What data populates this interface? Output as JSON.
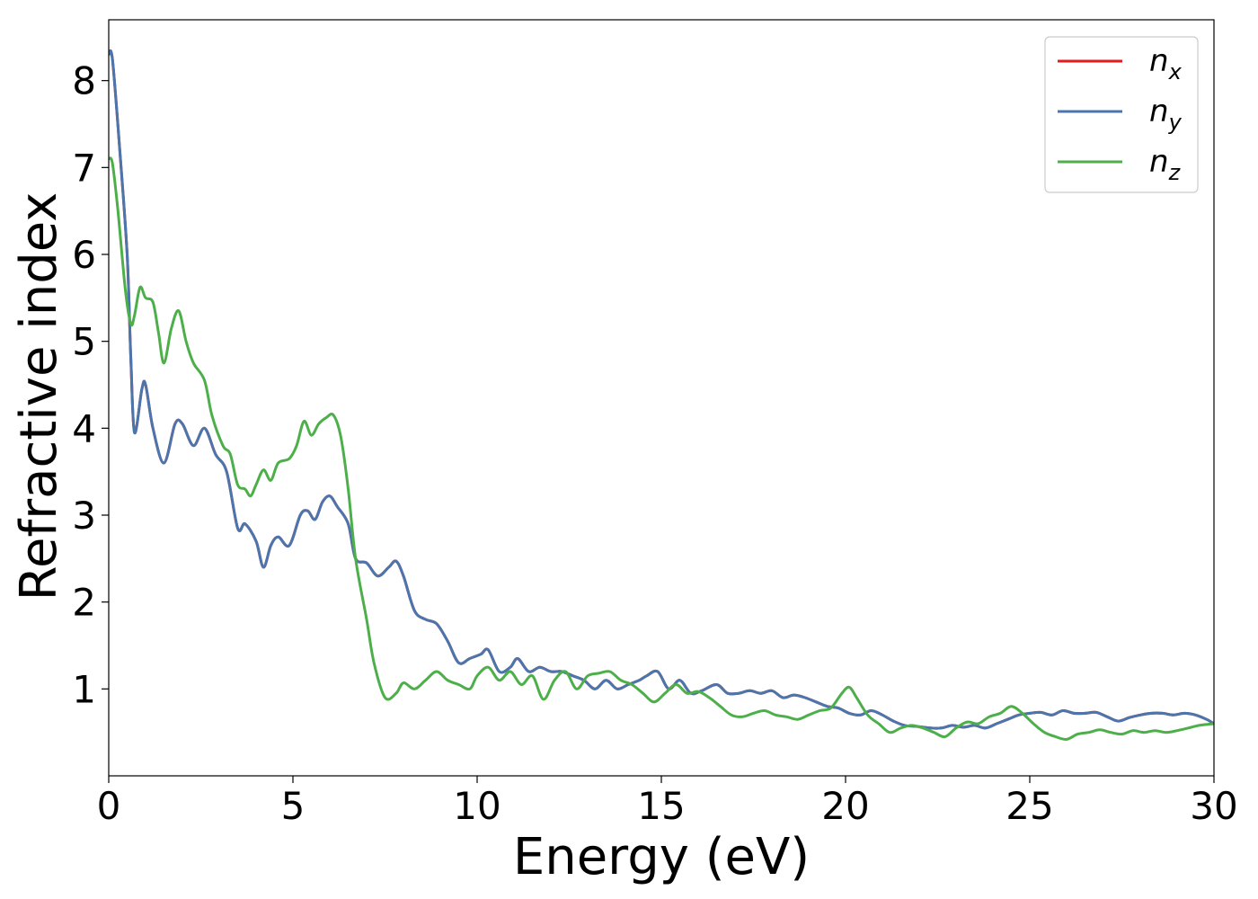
{
  "chart_data": {
    "type": "line",
    "title": "",
    "xlabel": "Energy (eV)",
    "ylabel": "Refractive index",
    "xlim": [
      0,
      30
    ],
    "ylim": [
      0,
      8.7
    ],
    "xticks": [
      0,
      5,
      10,
      15,
      20,
      25,
      30
    ],
    "yticks": [
      1,
      2,
      3,
      4,
      5,
      6,
      7,
      8
    ],
    "grid": false,
    "legend_position": "top-right",
    "series": [
      {
        "name": "n_x",
        "label_base": "n",
        "label_sub": "x",
        "color": "#e41a1c",
        "x": [
          0,
          0.1,
          0.3,
          0.5,
          0.6,
          0.7,
          0.9,
          1.0,
          1.2,
          1.5,
          1.8,
          2.0,
          2.3,
          2.6,
          2.9,
          3.2,
          3.5,
          3.7,
          4.0,
          4.2,
          4.4,
          4.6,
          4.9,
          5.2,
          5.4,
          5.6,
          5.8,
          6.0,
          6.2,
          6.5,
          6.7,
          7.0,
          7.3,
          7.6,
          7.8,
          8.0,
          8.3,
          8.6,
          8.9,
          9.2,
          9.5,
          9.8,
          10.1,
          10.3,
          10.6,
          10.9,
          11.1,
          11.4,
          11.7,
          12.0,
          12.3,
          12.6,
          12.9,
          13.2,
          13.5,
          13.8,
          14.1,
          14.4,
          14.6,
          14.9,
          15.2,
          15.5,
          15.8,
          16.1,
          16.5,
          16.8,
          17.1,
          17.4,
          17.7,
          18.0,
          18.3,
          18.6,
          18.9,
          19.2,
          19.5,
          19.8,
          20.1,
          20.4,
          20.7,
          21.0,
          21.3,
          21.6,
          21.9,
          22.3,
          22.6,
          22.9,
          23.2,
          23.5,
          23.8,
          24.1,
          24.4,
          24.7,
          25.0,
          25.3,
          25.6,
          25.9,
          26.2,
          26.5,
          26.8,
          27.1,
          27.4,
          27.7,
          28.0,
          28.3,
          28.6,
          28.9,
          29.2,
          29.5,
          29.8,
          30.0
        ],
        "values": [
          8.3,
          8.25,
          7.2,
          6.0,
          4.8,
          3.95,
          4.45,
          4.5,
          4.0,
          3.6,
          4.05,
          4.05,
          3.8,
          4.0,
          3.7,
          3.5,
          2.85,
          2.9,
          2.7,
          2.4,
          2.65,
          2.75,
          2.65,
          3.0,
          3.05,
          2.95,
          3.15,
          3.22,
          3.1,
          2.9,
          2.5,
          2.45,
          2.3,
          2.4,
          2.47,
          2.3,
          1.9,
          1.8,
          1.75,
          1.55,
          1.3,
          1.35,
          1.4,
          1.45,
          1.2,
          1.25,
          1.35,
          1.2,
          1.25,
          1.2,
          1.2,
          1.15,
          1.1,
          1.0,
          1.1,
          1.0,
          1.05,
          1.1,
          1.15,
          1.2,
          1.0,
          1.1,
          0.95,
          0.98,
          1.05,
          0.95,
          0.95,
          0.98,
          0.95,
          0.98,
          0.9,
          0.93,
          0.9,
          0.85,
          0.8,
          0.78,
          0.72,
          0.7,
          0.75,
          0.7,
          0.63,
          0.58,
          0.57,
          0.55,
          0.55,
          0.58,
          0.56,
          0.58,
          0.55,
          0.6,
          0.65,
          0.7,
          0.72,
          0.73,
          0.7,
          0.75,
          0.72,
          0.72,
          0.73,
          0.68,
          0.63,
          0.67,
          0.7,
          0.72,
          0.72,
          0.7,
          0.72,
          0.7,
          0.65,
          0.6
        ]
      },
      {
        "name": "n_y",
        "label_base": "n",
        "label_sub": "y",
        "color": "#4a76ad",
        "x": [
          0,
          0.1,
          0.3,
          0.5,
          0.6,
          0.7,
          0.9,
          1.0,
          1.2,
          1.5,
          1.8,
          2.0,
          2.3,
          2.6,
          2.9,
          3.2,
          3.5,
          3.7,
          4.0,
          4.2,
          4.4,
          4.6,
          4.9,
          5.2,
          5.4,
          5.6,
          5.8,
          6.0,
          6.2,
          6.5,
          6.7,
          7.0,
          7.3,
          7.6,
          7.8,
          8.0,
          8.3,
          8.6,
          8.9,
          9.2,
          9.5,
          9.8,
          10.1,
          10.3,
          10.6,
          10.9,
          11.1,
          11.4,
          11.7,
          12.0,
          12.3,
          12.6,
          12.9,
          13.2,
          13.5,
          13.8,
          14.1,
          14.4,
          14.6,
          14.9,
          15.2,
          15.5,
          15.8,
          16.1,
          16.5,
          16.8,
          17.1,
          17.4,
          17.7,
          18.0,
          18.3,
          18.6,
          18.9,
          19.2,
          19.5,
          19.8,
          20.1,
          20.4,
          20.7,
          21.0,
          21.3,
          21.6,
          21.9,
          22.3,
          22.6,
          22.9,
          23.2,
          23.5,
          23.8,
          24.1,
          24.4,
          24.7,
          25.0,
          25.3,
          25.6,
          25.9,
          26.2,
          26.5,
          26.8,
          27.1,
          27.4,
          27.7,
          28.0,
          28.3,
          28.6,
          28.9,
          29.2,
          29.5,
          29.8,
          30.0
        ],
        "values": [
          8.3,
          8.25,
          7.2,
          6.0,
          4.8,
          3.95,
          4.45,
          4.5,
          4.0,
          3.6,
          4.05,
          4.05,
          3.8,
          4.0,
          3.7,
          3.5,
          2.85,
          2.9,
          2.7,
          2.4,
          2.65,
          2.75,
          2.65,
          3.0,
          3.05,
          2.95,
          3.15,
          3.22,
          3.1,
          2.9,
          2.5,
          2.45,
          2.3,
          2.4,
          2.47,
          2.3,
          1.9,
          1.8,
          1.75,
          1.55,
          1.3,
          1.35,
          1.4,
          1.45,
          1.2,
          1.25,
          1.35,
          1.2,
          1.25,
          1.2,
          1.2,
          1.15,
          1.1,
          1.0,
          1.1,
          1.0,
          1.05,
          1.1,
          1.15,
          1.2,
          1.0,
          1.1,
          0.95,
          0.98,
          1.05,
          0.95,
          0.95,
          0.98,
          0.95,
          0.98,
          0.9,
          0.93,
          0.9,
          0.85,
          0.8,
          0.78,
          0.72,
          0.7,
          0.75,
          0.7,
          0.63,
          0.58,
          0.57,
          0.55,
          0.55,
          0.58,
          0.56,
          0.58,
          0.55,
          0.6,
          0.65,
          0.7,
          0.72,
          0.73,
          0.7,
          0.75,
          0.72,
          0.72,
          0.73,
          0.68,
          0.63,
          0.67,
          0.7,
          0.72,
          0.72,
          0.7,
          0.72,
          0.7,
          0.65,
          0.6
        ]
      },
      {
        "name": "n_z",
        "label_base": "n",
        "label_sub": "z",
        "color": "#4daf4a",
        "x": [
          0,
          0.1,
          0.25,
          0.45,
          0.6,
          0.7,
          0.85,
          1.0,
          1.2,
          1.35,
          1.5,
          1.7,
          1.9,
          2.1,
          2.3,
          2.6,
          2.8,
          3.1,
          3.3,
          3.5,
          3.7,
          3.85,
          4.0,
          4.2,
          4.4,
          4.6,
          4.9,
          5.1,
          5.3,
          5.5,
          5.7,
          5.9,
          6.1,
          6.3,
          6.5,
          6.7,
          7.0,
          7.2,
          7.5,
          7.8,
          8.0,
          8.3,
          8.6,
          8.9,
          9.2,
          9.5,
          9.8,
          10.0,
          10.3,
          10.6,
          10.9,
          11.2,
          11.5,
          11.8,
          12.1,
          12.4,
          12.7,
          13.0,
          13.3,
          13.6,
          13.9,
          14.2,
          14.5,
          14.8,
          15.1,
          15.4,
          15.7,
          16.0,
          16.3,
          16.6,
          16.9,
          17.2,
          17.5,
          17.8,
          18.1,
          18.4,
          18.7,
          19.0,
          19.3,
          19.6,
          19.9,
          20.1,
          20.3,
          20.6,
          20.9,
          21.2,
          21.5,
          21.8,
          22.1,
          22.4,
          22.7,
          23.0,
          23.3,
          23.6,
          23.9,
          24.2,
          24.5,
          24.8,
          25.1,
          25.4,
          25.7,
          26.0,
          26.3,
          26.6,
          26.9,
          27.2,
          27.5,
          27.8,
          28.1,
          28.4,
          28.7,
          29.0,
          29.3,
          29.6,
          30.0
        ],
        "values": [
          7.1,
          7.05,
          6.5,
          5.6,
          5.2,
          5.3,
          5.62,
          5.5,
          5.45,
          5.1,
          4.75,
          5.15,
          5.35,
          5.0,
          4.75,
          4.55,
          4.15,
          3.8,
          3.7,
          3.35,
          3.3,
          3.22,
          3.35,
          3.52,
          3.4,
          3.6,
          3.65,
          3.8,
          4.08,
          3.92,
          4.05,
          4.12,
          4.15,
          3.9,
          3.3,
          2.5,
          1.8,
          1.3,
          0.9,
          0.95,
          1.07,
          1.0,
          1.1,
          1.2,
          1.1,
          1.05,
          1.0,
          1.15,
          1.25,
          1.1,
          1.2,
          1.05,
          1.15,
          0.88,
          1.1,
          1.2,
          1.0,
          1.15,
          1.18,
          1.2,
          1.1,
          1.05,
          0.95,
          0.85,
          0.95,
          1.05,
          0.95,
          0.97,
          0.9,
          0.8,
          0.7,
          0.68,
          0.72,
          0.75,
          0.7,
          0.68,
          0.65,
          0.7,
          0.75,
          0.78,
          0.95,
          1.02,
          0.9,
          0.7,
          0.6,
          0.5,
          0.55,
          0.58,
          0.55,
          0.5,
          0.45,
          0.55,
          0.62,
          0.6,
          0.68,
          0.72,
          0.8,
          0.72,
          0.6,
          0.5,
          0.45,
          0.42,
          0.48,
          0.5,
          0.53,
          0.5,
          0.48,
          0.52,
          0.5,
          0.52,
          0.5,
          0.52,
          0.55,
          0.58,
          0.6
        ]
      }
    ]
  }
}
